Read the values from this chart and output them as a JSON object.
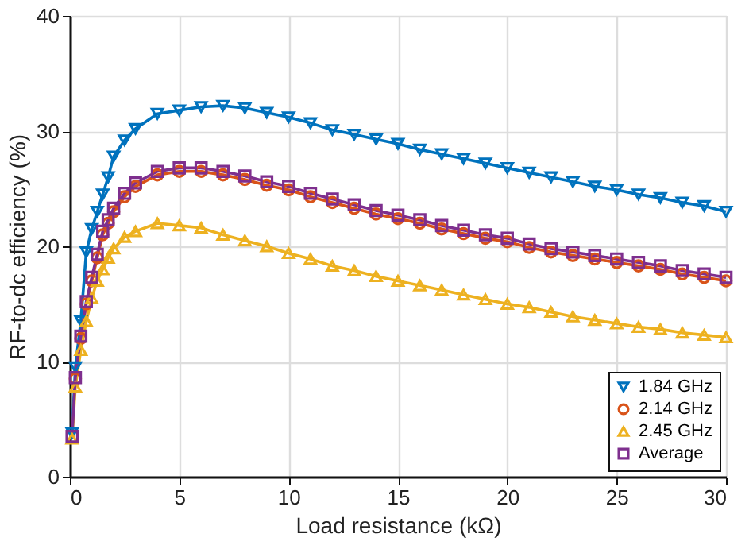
{
  "chart_data": {
    "type": "line",
    "xlabel": "Load resistance (kΩ)",
    "ylabel": "RF-to-dc efficiency (%)",
    "x": [
      0.1,
      0.25,
      0.5,
      0.75,
      1,
      1.25,
      1.5,
      1.75,
      2,
      2.5,
      3,
      4,
      5,
      6,
      7,
      8,
      9,
      10,
      11,
      12,
      13,
      14,
      15,
      16,
      17,
      18,
      19,
      20,
      21,
      22,
      23,
      24,
      25,
      26,
      27,
      28,
      29,
      30
    ],
    "xlim": [
      0,
      30
    ],
    "xticks": [
      0,
      5,
      10,
      15,
      20,
      25,
      30
    ],
    "ylim": [
      0,
      40
    ],
    "yticks": [
      0,
      10,
      20,
      30,
      40
    ],
    "grid": true,
    "legend": "bottom right",
    "line_style": "solid",
    "series": [
      {
        "name": "1.84 GHz",
        "color": "#0072bd",
        "marker": "triangle-down",
        "values": [
          3.8,
          9.5,
          13.5,
          19.5,
          21.5,
          23,
          24.5,
          26,
          27.8,
          29.2,
          30.2,
          31.5,
          31.8,
          32.1,
          32.2,
          32.0,
          31.6,
          31.2,
          30.7,
          30.1,
          29.7,
          29.3,
          28.9,
          28.4,
          28.0,
          27.6,
          27.2,
          26.8,
          26.4,
          26.0,
          25.6,
          25.2,
          24.9,
          24.5,
          24.2,
          23.8,
          23.5,
          23.0
        ]
      },
      {
        "name": "2.14 GHz",
        "color": "#d95319",
        "marker": "circle",
        "values": [
          null,
          8.5,
          12,
          15,
          17,
          19,
          21,
          22,
          23,
          24.3,
          25.2,
          26.2,
          26.5,
          26.5,
          26.2,
          25.8,
          25.3,
          24.9,
          24.3,
          23.8,
          23.3,
          22.8,
          22.4,
          22.0,
          21.5,
          21.1,
          20.7,
          20.4,
          19.9,
          19.5,
          19.2,
          18.9,
          18.6,
          18.3,
          18.0,
          17.6,
          17.3,
          17.0
        ]
      },
      {
        "name": "2.45 GHz",
        "color": "#edb120",
        "marker": "triangle-up",
        "values": [
          3.3,
          7.8,
          11,
          13.5,
          15.5,
          17,
          18,
          19,
          19.8,
          20.8,
          21.3,
          22.0,
          21.8,
          21.6,
          21.0,
          20.5,
          20.0,
          19.4,
          18.9,
          18.3,
          17.9,
          17.4,
          17.0,
          16.6,
          16.2,
          15.8,
          15.4,
          15.0,
          14.7,
          14.3,
          13.9,
          13.6,
          13.3,
          13.0,
          12.8,
          12.5,
          12.3,
          12.1
        ]
      },
      {
        "name": "Average",
        "color": "#7e2f8e",
        "marker": "square",
        "values": [
          3.5,
          8.6,
          12.2,
          15.2,
          17.3,
          19.3,
          21.3,
          22.3,
          23.3,
          24.6,
          25.5,
          26.5,
          26.8,
          26.8,
          26.5,
          26.1,
          25.6,
          25.2,
          24.6,
          24.1,
          23.6,
          23.1,
          22.7,
          22.3,
          21.8,
          21.4,
          21.0,
          20.7,
          20.2,
          19.8,
          19.5,
          19.2,
          18.9,
          18.6,
          18.3,
          17.9,
          17.6,
          17.3
        ]
      }
    ]
  }
}
